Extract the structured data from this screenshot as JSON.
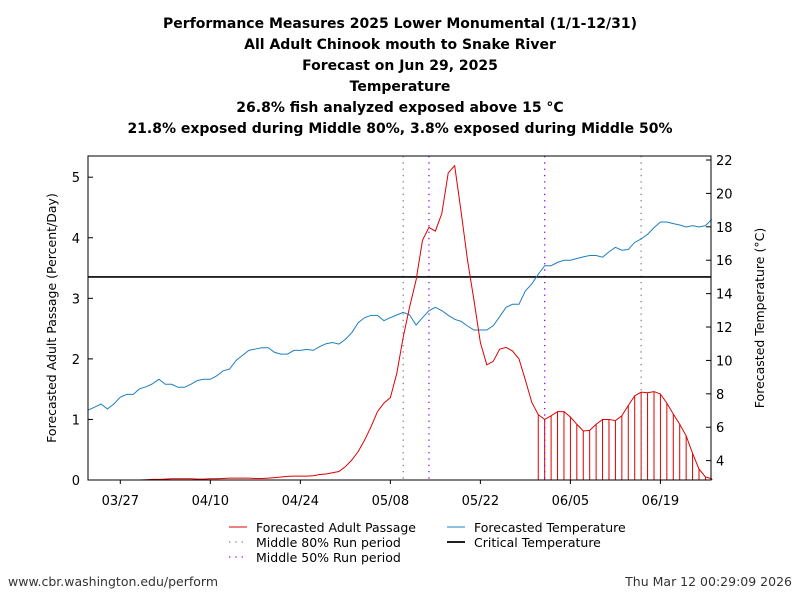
{
  "chart_data": {
    "type": "line",
    "title_lines": [
      "Performance Measures 2025 Lower Monumental (1/1-12/31)",
      "All Adult Chinook mouth to Snake River",
      "Forecast on Jun 29, 2025",
      "Temperature",
      "26.8% fish analyzed exposed above 15 °C",
      "21.8% exposed during Middle 80%, 3.8% exposed during Middle 50%"
    ],
    "ylabel": "Forecasted Adult Passage (Percent/Day)",
    "y2label": "Forecasted Temperature (°C)",
    "ylim": [
      0,
      5.35
    ],
    "y2lim": [
      2.84,
      22.24
    ],
    "yticks": [
      0,
      1,
      2,
      3,
      4,
      5
    ],
    "y2ticks": [
      4,
      6,
      8,
      10,
      12,
      14,
      16,
      18,
      20,
      22
    ],
    "xticks": [
      "03/27",
      "04/10",
      "04/24",
      "05/08",
      "05/22",
      "06/05",
      "06/19"
    ],
    "x": [
      "03/22",
      "03/23",
      "03/24",
      "03/25",
      "03/26",
      "03/27",
      "03/28",
      "03/29",
      "03/30",
      "03/31",
      "04/01",
      "04/02",
      "04/03",
      "04/04",
      "04/05",
      "04/06",
      "04/07",
      "04/08",
      "04/09",
      "04/10",
      "04/11",
      "04/12",
      "04/13",
      "04/14",
      "04/15",
      "04/16",
      "04/17",
      "04/18",
      "04/19",
      "04/20",
      "04/21",
      "04/22",
      "04/23",
      "04/24",
      "04/25",
      "04/26",
      "04/27",
      "04/28",
      "04/29",
      "04/30",
      "05/01",
      "05/02",
      "05/03",
      "05/04",
      "05/05",
      "05/06",
      "05/07",
      "05/08",
      "05/09",
      "05/10",
      "05/11",
      "05/12",
      "05/13",
      "05/14",
      "05/15",
      "05/16",
      "05/17",
      "05/18",
      "05/19",
      "05/20",
      "05/21",
      "05/22",
      "05/23",
      "05/24",
      "05/25",
      "05/26",
      "05/27",
      "05/28",
      "05/29",
      "05/30",
      "05/31",
      "06/01",
      "06/02",
      "06/03",
      "06/04",
      "06/05",
      "06/06",
      "06/07",
      "06/08",
      "06/09",
      "06/10",
      "06/11",
      "06/12",
      "06/13",
      "06/14",
      "06/15",
      "06/16",
      "06/17",
      "06/18",
      "06/19",
      "06/20",
      "06/21",
      "06/22",
      "06/23",
      "06/24",
      "06/25",
      "06/26",
      "06/27"
    ],
    "series": [
      {
        "name": "Forecasted Adult Passage",
        "axis": "left",
        "color": "#dd0000",
        "values": [
          0,
          0,
          0,
          0,
          0,
          0,
          0,
          0,
          0,
          0.005,
          0.01,
          0.01,
          0.015,
          0.02,
          0.02,
          0.02,
          0.02,
          0.015,
          0.015,
          0.02,
          0.02,
          0.025,
          0.03,
          0.03,
          0.03,
          0.03,
          0.025,
          0.025,
          0.03,
          0.04,
          0.05,
          0.06,
          0.065,
          0.065,
          0.065,
          0.07,
          0.09,
          0.1,
          0.12,
          0.14,
          0.22,
          0.33,
          0.47,
          0.66,
          0.88,
          1.13,
          1.27,
          1.36,
          1.76,
          2.36,
          2.86,
          3.3,
          3.96,
          4.17,
          4.11,
          4.4,
          5.07,
          5.19,
          4.43,
          3.63,
          2.97,
          2.27,
          1.9,
          1.96,
          2.16,
          2.19,
          2.13,
          2.0,
          1.65,
          1.28,
          1.08,
          1.0,
          1.06,
          1.13,
          1.13,
          1.04,
          0.92,
          0.81,
          0.82,
          0.92,
          1.0,
          1.0,
          0.98,
          1.06,
          1.23,
          1.39,
          1.45,
          1.44,
          1.46,
          1.42,
          1.27,
          1.09,
          0.92,
          0.73,
          0.44,
          0.18,
          0.05,
          0.02
        ]
      },
      {
        "name": "Forecasted Temperature",
        "axis": "right",
        "color": "#1f7fc0",
        "values": [
          7.03,
          7.2,
          7.39,
          7.09,
          7.39,
          7.8,
          7.97,
          7.97,
          8.3,
          8.42,
          8.6,
          8.87,
          8.57,
          8.57,
          8.39,
          8.39,
          8.58,
          8.8,
          8.87,
          8.87,
          9.08,
          9.38,
          9.48,
          10.0,
          10.3,
          10.6,
          10.68,
          10.76,
          10.76,
          10.48,
          10.38,
          10.38,
          10.6,
          10.6,
          10.66,
          10.6,
          10.82,
          11.0,
          11.07,
          10.98,
          11.26,
          11.66,
          12.26,
          12.56,
          12.7,
          12.7,
          12.38,
          12.56,
          12.72,
          12.88,
          12.72,
          12.12,
          12.56,
          12.98,
          13.18,
          12.98,
          12.7,
          12.46,
          12.34,
          12.06,
          11.82,
          11.82,
          11.82,
          12.08,
          12.62,
          13.18,
          13.36,
          13.36,
          14.16,
          14.58,
          15.16,
          15.67,
          15.67,
          15.87,
          16.0,
          16.0,
          16.1,
          16.2,
          16.28,
          16.28,
          16.18,
          16.5,
          16.77,
          16.6,
          16.64,
          17.07,
          17.27,
          17.55,
          17.95,
          18.29,
          18.29,
          18.19,
          18.11,
          17.99,
          18.07,
          17.99,
          18.07,
          18.45
        ]
      }
    ],
    "critical_temperature": 15,
    "critical_color": "#000000",
    "middle_80_run_period": [
      "05/10",
      "06/16"
    ],
    "middle_80_color": "#808080",
    "middle_50_run_period": [
      "05/14",
      "06/01"
    ],
    "middle_50_color": "#a000ff",
    "legend": {
      "placement": "bottom",
      "items": [
        {
          "label": "Forecasted Adult Passage",
          "style": "line",
          "color": "#dd0000"
        },
        {
          "label": "Forecasted Temperature",
          "style": "line",
          "color": "#1f7fc0"
        },
        {
          "label": "Middle 80% Run period",
          "style": "dotted",
          "color": "#808080"
        },
        {
          "label": "Critical Temperature",
          "style": "line",
          "color": "#000000"
        },
        {
          "label": "Middle 50% Run period",
          "style": "dotted",
          "color": "#a000ff"
        }
      ]
    }
  },
  "footer": {
    "url": "www.cbr.washington.edu/perform",
    "timestamp": "Thu Mar 12 00:29:09 2026"
  }
}
